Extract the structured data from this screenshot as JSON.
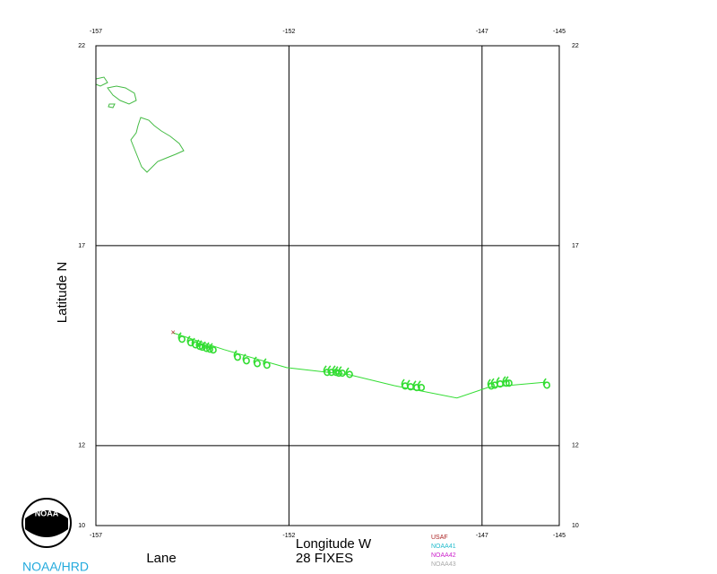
{
  "chart_data": {
    "type": "track",
    "storm": "Lane",
    "fix_count": "28 FIXES",
    "xlabel": "Longitude W",
    "ylabel": "Latitude N",
    "org": "NOAA/HRD",
    "logo": "NOAA",
    "xlim": [
      -157,
      -145
    ],
    "ylim": [
      10,
      22
    ],
    "xticks": [
      -157,
      -152,
      -147,
      -145
    ],
    "yticks": [
      10,
      12,
      17,
      22
    ],
    "grid": true,
    "color": "#33dd33",
    "legend": [
      {
        "name": "USAF",
        "color": "#aa2222"
      },
      {
        "name": "NOAA41",
        "color": "#22bbcc"
      },
      {
        "name": "NOAA42",
        "color": "#cc22cc"
      },
      {
        "name": "NOAA43",
        "color": "#aaaaaa"
      }
    ],
    "track": {
      "x": [
        -155.0,
        -153.68,
        -152.06,
        -150.43,
        -149.27,
        -147.65,
        -146.83,
        -145.32
      ],
      "y": [
        14.82,
        14.4,
        13.95,
        13.77,
        13.5,
        13.19,
        13.46,
        13.59
      ]
    },
    "fixes": {
      "x": [
        -154.77,
        -154.54,
        -154.42,
        -154.31,
        -154.24,
        -154.14,
        -154.05,
        -153.96,
        -153.33,
        -153.1,
        -152.82,
        -152.57,
        -151.01,
        -150.9,
        -150.78,
        -150.71,
        -150.62,
        -150.43,
        -148.99,
        -148.85,
        -148.69,
        -148.57,
        -146.76,
        -146.67,
        -146.53,
        -146.37,
        -146.3,
        -145.32
      ],
      "y": [
        14.69,
        14.6,
        14.55,
        14.51,
        14.49,
        14.46,
        14.44,
        14.42,
        14.24,
        14.15,
        14.08,
        14.04,
        13.86,
        13.86,
        13.86,
        13.84,
        13.84,
        13.81,
        13.52,
        13.5,
        13.48,
        13.48,
        13.52,
        13.54,
        13.57,
        13.59,
        13.59,
        13.54
      ]
    }
  }
}
